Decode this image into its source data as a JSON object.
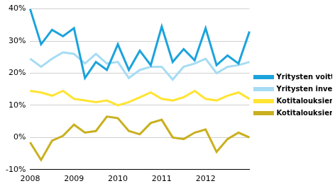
{
  "chart_data": {
    "type": "line",
    "categories": [
      "2008",
      null,
      null,
      null,
      "2009",
      null,
      null,
      null,
      "2010",
      null,
      null,
      null,
      "2011",
      null,
      null,
      null,
      "2012",
      null,
      null,
      null,
      null
    ],
    "series": [
      {
        "name": "Yritysten voittoaste",
        "color": "#1ba3dc",
        "values": [
          40,
          29,
          33.5,
          31.5,
          34,
          18.5,
          23.5,
          21,
          29,
          21,
          27,
          22.5,
          34.5,
          23.5,
          27.5,
          24,
          34,
          22.5,
          25.5,
          23,
          33
        ]
      },
      {
        "name": "Yritysten investointiaste",
        "color": "#a6dcf3",
        "values": [
          24.5,
          22,
          24.5,
          26.5,
          26,
          23,
          26,
          23,
          23.5,
          18.5,
          21,
          22,
          22,
          18,
          22,
          23,
          24.5,
          20,
          22,
          22.5,
          23.5
        ]
      },
      {
        "name": "Kotitalouksien investointiaste",
        "color": "#ffe433",
        "values": [
          14.5,
          14,
          13,
          14.5,
          12,
          11.5,
          11,
          11.5,
          10,
          11,
          12.5,
          14,
          12,
          11.5,
          12.5,
          14.5,
          12,
          11.5,
          13,
          14,
          12
        ]
      },
      {
        "name": "Kotitalouksien säästämisaste",
        "color": "#c9b01e",
        "values": [
          -1.5,
          -7,
          -1,
          0.5,
          4,
          1.5,
          2,
          6.5,
          6,
          2,
          1,
          4.5,
          5.5,
          0,
          -0.5,
          1.5,
          2.5,
          -4.5,
          -0.5,
          1.5,
          0
        ]
      }
    ],
    "ylim": [
      -10,
      40
    ],
    "yticks": [
      {
        "value": -10,
        "label": "-10%"
      },
      {
        "value": 0,
        "label": "0%"
      },
      {
        "value": 10,
        "label": "10%"
      },
      {
        "value": 20,
        "label": "20%"
      },
      {
        "value": 30,
        "label": "30%"
      },
      {
        "value": 40,
        "label": "40%"
      }
    ],
    "grid": true,
    "legend": "right"
  }
}
